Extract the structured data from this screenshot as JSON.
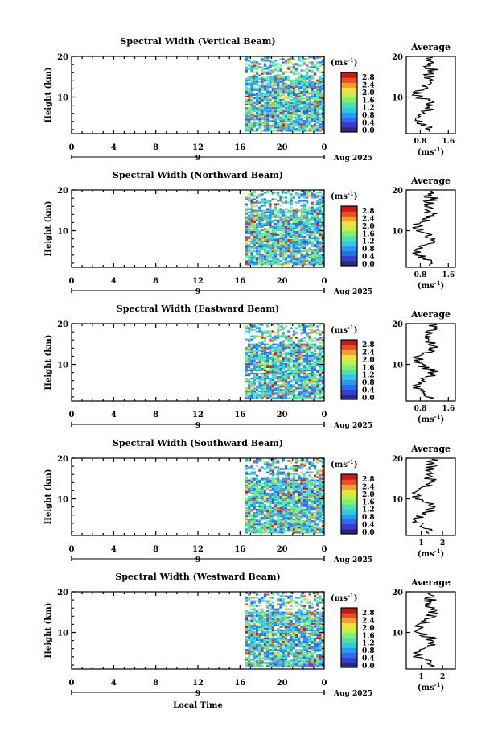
{
  "figure": {
    "xlabel": "Local Time",
    "date_label": "Aug 2025",
    "day_label": "9",
    "colorbar_unit": "(ms",
    "colorbar_unit_exp": "-1",
    "colorbar_unit_close": ")",
    "average_title": "Average",
    "avg_unit": "(ms",
    "avg_unit_exp": "-1",
    "avg_unit_close": ")",
    "ylabel": "Height (km)"
  },
  "colors": {
    "colormap": [
      "#2a2a7a",
      "#3c3cc8",
      "#2c6cf0",
      "#2a9af0",
      "#30c8e8",
      "#50e0b0",
      "#80f070",
      "#c0f050",
      "#f0e040",
      "#f0a030",
      "#e85020",
      "#c81818"
    ]
  },
  "chart_data": [
    {
      "type": "heatmap",
      "title": "Spectral Width (Vertical Beam)",
      "x_ticks": [
        "0",
        "4",
        "8",
        "12",
        "16",
        "20",
        "0"
      ],
      "y_ticks": [
        "20",
        "10"
      ],
      "xlim": [
        0,
        24
      ],
      "ylim": [
        1,
        20
      ],
      "data_start_hour": 16.5,
      "colorbar_ticks": [
        "2.8",
        "2.4",
        "2.0",
        "1.6",
        "1.2",
        "0.8",
        "0.4",
        "0.0"
      ],
      "avg_xticks": [
        "0.8",
        "1.6"
      ],
      "avg_xlim": [
        0.4,
        1.8
      ],
      "avg_profile_seed": 11
    },
    {
      "type": "heatmap",
      "title": "Spectral Width (Northward Beam)",
      "x_ticks": [
        "0",
        "4",
        "8",
        "12",
        "16",
        "20",
        "0"
      ],
      "y_ticks": [
        "20",
        "10"
      ],
      "xlim": [
        0,
        24
      ],
      "ylim": [
        1,
        20
      ],
      "data_start_hour": 16.5,
      "colorbar_ticks": [
        "2.8",
        "2.4",
        "2.0",
        "1.6",
        "1.2",
        "0.8",
        "0.4",
        "0.0"
      ],
      "avg_xticks": [
        "0.8",
        "1.6"
      ],
      "avg_xlim": [
        0.4,
        1.8
      ],
      "avg_profile_seed": 23
    },
    {
      "type": "heatmap",
      "title": "Spectral Width (Eastward Beam)",
      "x_ticks": [
        "0",
        "4",
        "8",
        "12",
        "16",
        "20",
        "0"
      ],
      "y_ticks": [
        "20",
        "10"
      ],
      "xlim": [
        0,
        24
      ],
      "ylim": [
        1,
        20
      ],
      "data_start_hour": 16.5,
      "colorbar_ticks": [
        "2.8",
        "2.4",
        "2.0",
        "1.6",
        "1.2",
        "0.8",
        "0.4",
        "0.0"
      ],
      "avg_xticks": [
        "0.8",
        "1.6"
      ],
      "avg_xlim": [
        0.4,
        1.8
      ],
      "avg_profile_seed": 37
    },
    {
      "type": "heatmap",
      "title": "Spectral Width (Southward Beam)",
      "x_ticks": [
        "0",
        "4",
        "8",
        "12",
        "16",
        "20",
        "0"
      ],
      "y_ticks": [
        "20",
        "10"
      ],
      "xlim": [
        0,
        24
      ],
      "ylim": [
        1,
        20
      ],
      "data_start_hour": 16.5,
      "colorbar_ticks": [
        "2.8",
        "2.4",
        "2.0",
        "1.6",
        "1.2",
        "0.8",
        "0.4",
        "0.0"
      ],
      "avg_xticks": [
        "1",
        "2"
      ],
      "avg_xlim": [
        0.3,
        2.6
      ],
      "avg_profile_seed": 53
    },
    {
      "type": "heatmap",
      "title": "Spectral Width (Westward Beam)",
      "x_ticks": [
        "0",
        "4",
        "8",
        "12",
        "16",
        "20",
        "0"
      ],
      "y_ticks": [
        "20",
        "10"
      ],
      "xlim": [
        0,
        24
      ],
      "ylim": [
        1,
        20
      ],
      "data_start_hour": 16.5,
      "colorbar_ticks": [
        "2.8",
        "2.4",
        "2.0",
        "1.6",
        "1.2",
        "0.8",
        "0.4",
        "0.0"
      ],
      "avg_xticks": [
        "1",
        "2"
      ],
      "avg_xlim": [
        0.3,
        2.6
      ],
      "avg_profile_seed": 71
    }
  ]
}
